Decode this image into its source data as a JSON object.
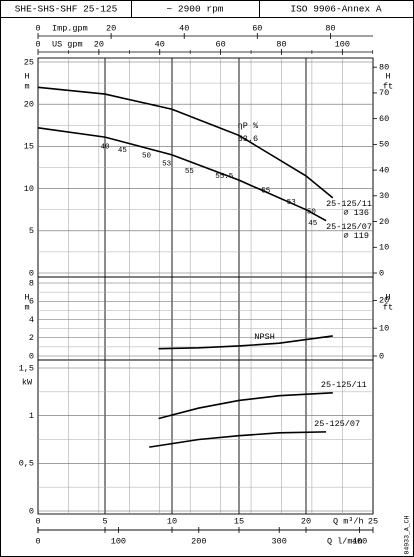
{
  "header": [
    "SHE-SHS-SHF 25-125",
    "~ 2900 rpm",
    "ISO 9906-Annex A"
  ],
  "drawing_id": "04933_A_CH",
  "chart_data": {
    "type": "line",
    "x_axes": [
      {
        "label": "Imp.gpm",
        "xlim": [
          0,
          91.65
        ],
        "xticks": [
          0,
          20,
          40,
          60,
          80
        ]
      },
      {
        "label": "US gpm",
        "xlim": [
          0,
          110.07
        ],
        "xticks": [
          0,
          20,
          40,
          60,
          80,
          100
        ],
        "minorticks": [
          10,
          30,
          50,
          70,
          90,
          110
        ]
      },
      {
        "label": "Q m³/h",
        "xlim": [
          0,
          25
        ],
        "xticks": [
          0,
          5,
          10,
          15,
          20,
          25
        ]
      },
      {
        "label": "Q l/min",
        "xlim": [
          0,
          416.67
        ],
        "xticks": [
          0,
          100,
          200,
          300,
          400
        ]
      }
    ],
    "panels": [
      {
        "ylabel": "H",
        "yunit": "m",
        "y2label": "H",
        "y2unit": "ft",
        "ylim": [
          0,
          25
        ],
        "yticks": [
          0,
          5,
          10,
          15,
          20,
          25
        ],
        "yminorticks": [
          2.5,
          7.5,
          12.5,
          17.5,
          22.5
        ],
        "y2lim": [
          0,
          82.02
        ],
        "y2ticks": [
          0,
          10,
          20,
          30,
          40,
          50,
          60,
          70,
          80
        ],
        "series": [
          {
            "name": "25-125/11",
            "note": "⌀ 136",
            "x": [
              0,
              5,
              10,
              15,
              20,
              22
            ],
            "values": [
              22,
              21.2,
              19.4,
              16.3,
              11.5,
              8.9
            ]
          },
          {
            "name": "25-125/07",
            "note": "⌀ 119",
            "x": [
              0,
              5,
              10,
              15,
              20,
              21.5
            ],
            "values": [
              17.2,
              16.1,
              14,
              11,
              7.5,
              6.2
            ]
          }
        ],
        "efficiency": {
          "label": "ηP %",
          "peak": 53.6,
          "peak_x": 14.9,
          "peak_y": 15.9,
          "points": [
            {
              "value": 40,
              "x": 5,
              "y": 15
            },
            {
              "value": 45,
              "x": 6.3,
              "y": 14.6
            },
            {
              "value": 50,
              "x": 8.1,
              "y": 13.9
            },
            {
              "value": 53,
              "x": 9.6,
              "y": 13
            },
            {
              "value": 55,
              "x": 11.3,
              "y": 12.1
            },
            {
              "value": 55.5,
              "x": 13.9,
              "y": 11.5
            },
            {
              "value": 55,
              "x": 17,
              "y": 9.8
            },
            {
              "value": 53,
              "x": 18.9,
              "y": 8.4
            },
            {
              "value": 50,
              "x": 20.4,
              "y": 7.3
            },
            {
              "value": 45,
              "x": 20.5,
              "y": 5.9
            }
          ]
        }
      },
      {
        "ylabel": "H",
        "yunit": "m",
        "y2label": "H",
        "y2unit": "ft",
        "ylim": [
          0,
          8
        ],
        "yticks": [
          0,
          2,
          4,
          6,
          8
        ],
        "yminorticks": [
          1,
          3,
          5,
          7
        ],
        "y2lim": [
          0,
          26.25
        ],
        "y2ticks": [
          0,
          10,
          20
        ],
        "series": [
          {
            "name": "NPSH",
            "x": [
              9,
              12,
              15,
              18,
              22
            ],
            "values": [
              0.8,
              0.9,
              1.1,
              1.4,
              2.2
            ]
          }
        ]
      },
      {
        "ylabel": "kW",
        "ylim": [
          0,
          1.5
        ],
        "yticks": [
          0,
          {
            "value": 0.5,
            "label": "0,5"
          },
          1,
          {
            "value": 1.5,
            "label": "1,5"
          }
        ],
        "yminorticks": [
          0.25,
          0.75,
          1.25
        ],
        "series": [
          {
            "name": "25-125/11",
            "x": [
              9,
              12,
              15,
              18,
              22
            ],
            "values": [
              0.97,
              1.08,
              1.16,
              1.21,
              1.24
            ]
          },
          {
            "name": "25-125/07",
            "x": [
              8.3,
              12,
              15,
              18,
              21.5
            ],
            "values": [
              0.67,
              0.75,
              0.79,
              0.82,
              0.83
            ]
          }
        ]
      }
    ]
  }
}
